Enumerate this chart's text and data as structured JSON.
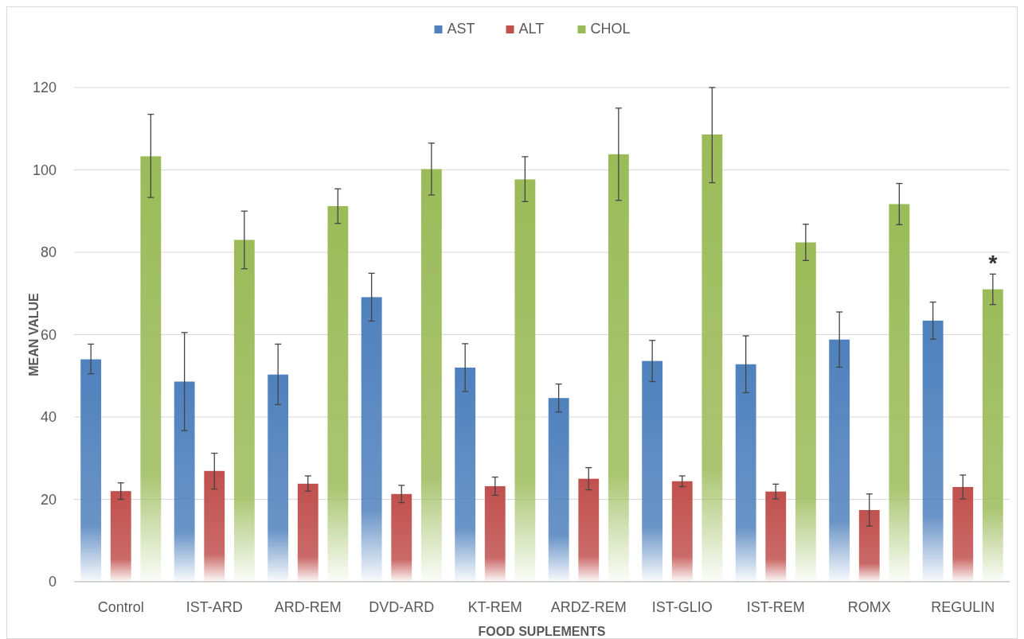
{
  "chart_data": {
    "type": "bar",
    "xlabel": "FOOD SUPLEMENTS",
    "ylabel": "MEAN VALUE",
    "categories": [
      "Control",
      "IST-ARD",
      "ARD-REM",
      "DVD-ARD",
      "KT-REM",
      "ARDZ-REM",
      "IST-GLIO",
      "IST-REM",
      "ROMX",
      "REGULIN"
    ],
    "series": [
      {
        "name": "AST",
        "color": "#4f81bd",
        "values": [
          54,
          48.6,
          50.3,
          69.1,
          52,
          44.6,
          53.6,
          52.8,
          58.8,
          63.4
        ],
        "errors": [
          [
            50.5,
            57.7
          ],
          [
            36.7,
            60.5
          ],
          [
            43,
            57.7
          ],
          [
            63.3,
            74.9
          ],
          [
            46.2,
            57.8
          ],
          [
            41.2,
            48
          ],
          [
            48.6,
            58.6
          ],
          [
            45.9,
            59.7
          ],
          [
            52.1,
            65.5
          ],
          [
            58.9,
            67.9
          ]
        ]
      },
      {
        "name": "ALT",
        "color": "#c0504d",
        "values": [
          22,
          26.9,
          23.8,
          21.3,
          23.2,
          25,
          24.4,
          21.9,
          17.4,
          23
        ],
        "errors": [
          [
            20,
            24
          ],
          [
            22.5,
            31.2
          ],
          [
            22,
            25.7
          ],
          [
            19.2,
            23.4
          ],
          [
            21,
            25.4
          ],
          [
            22.3,
            27.7
          ],
          [
            23.1,
            25.7
          ],
          [
            20.1,
            23.7
          ],
          [
            13.5,
            21.3
          ],
          [
            20.1,
            25.9
          ]
        ]
      },
      {
        "name": "CHOL",
        "color": "#9bbb59",
        "values": [
          103.3,
          83,
          91.2,
          100.2,
          97.7,
          103.8,
          108.6,
          82.4,
          91.7,
          71
        ],
        "errors": [
          [
            93.3,
            113.5
          ],
          [
            76,
            90
          ],
          [
            87,
            95.4
          ],
          [
            93.9,
            106.5
          ],
          [
            92.3,
            103.2
          ],
          [
            92.6,
            115
          ],
          [
            96.9,
            120
          ],
          [
            78,
            86.8
          ],
          [
            86.7,
            96.7
          ],
          [
            67.3,
            74.7
          ]
        ]
      }
    ],
    "ylim": [
      0,
      120
    ],
    "yticks": [
      0,
      20,
      40,
      60,
      80,
      100,
      120
    ],
    "grid": "y",
    "legend": "top",
    "annotations": [
      "*"
    ]
  }
}
